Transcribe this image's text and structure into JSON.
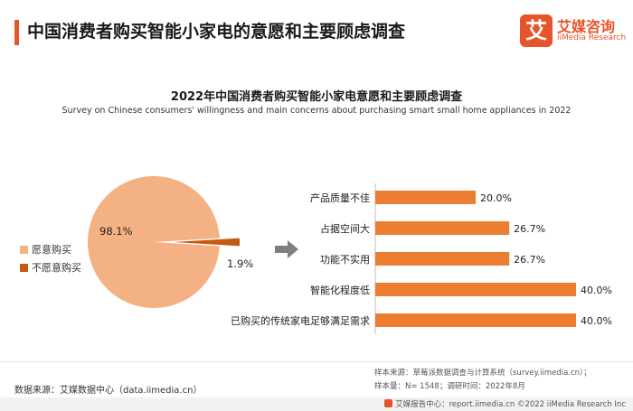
{
  "header": {
    "title": "中国消费者购买智能小家电的意愿和主要顾虑调查",
    "logo": {
      "mark": "艾",
      "cn": "艾媒咨询",
      "en": "iiMedia Research"
    }
  },
  "colors": {
    "accent": "#e8542a",
    "willing": "#f4b183",
    "unwilling": "#c55a11",
    "bar": "#ed7d31",
    "arrow": "#7f7f7f"
  },
  "chart_data": [
    {
      "type": "pie",
      "title": "2022年中国消费者购买智能小家电意愿和主要顾虑调查",
      "subtitle": "Survey on Chinese consumers' willingness and main concerns about purchasing smart small home appliances in 2022",
      "categories": [
        "愿意购买",
        "不愿意购买"
      ],
      "values": [
        98.1,
        1.9
      ],
      "labels": [
        "98.1%",
        "1.9%"
      ],
      "legend": "left"
    },
    {
      "type": "bar",
      "orientation": "horizontal",
      "categories": [
        "产品质量不佳",
        "占据空间大",
        "功能不实用",
        "智能化程度低",
        "已购买的传统家电足够满足需求"
      ],
      "values": [
        20.0,
        26.7,
        26.7,
        40.0,
        40.0
      ],
      "labels": [
        "20.0%",
        "26.7%",
        "26.7%",
        "40.0%",
        "40.0%"
      ],
      "xlim": [
        0,
        40
      ]
    }
  ],
  "footer": {
    "source_left": "数据来源：艾媒数据中心（data.iimedia.cn）",
    "source_right_1": "样本来源：草莓派数据调查与计算系统（survey.iimedia.cn）；",
    "source_right_2": "样本量：N= 1548；调研时间：2022年8月",
    "copyright": "艾媒报告中心：report.iimedia.cn   ©2022  iiMedia Research  Inc"
  }
}
